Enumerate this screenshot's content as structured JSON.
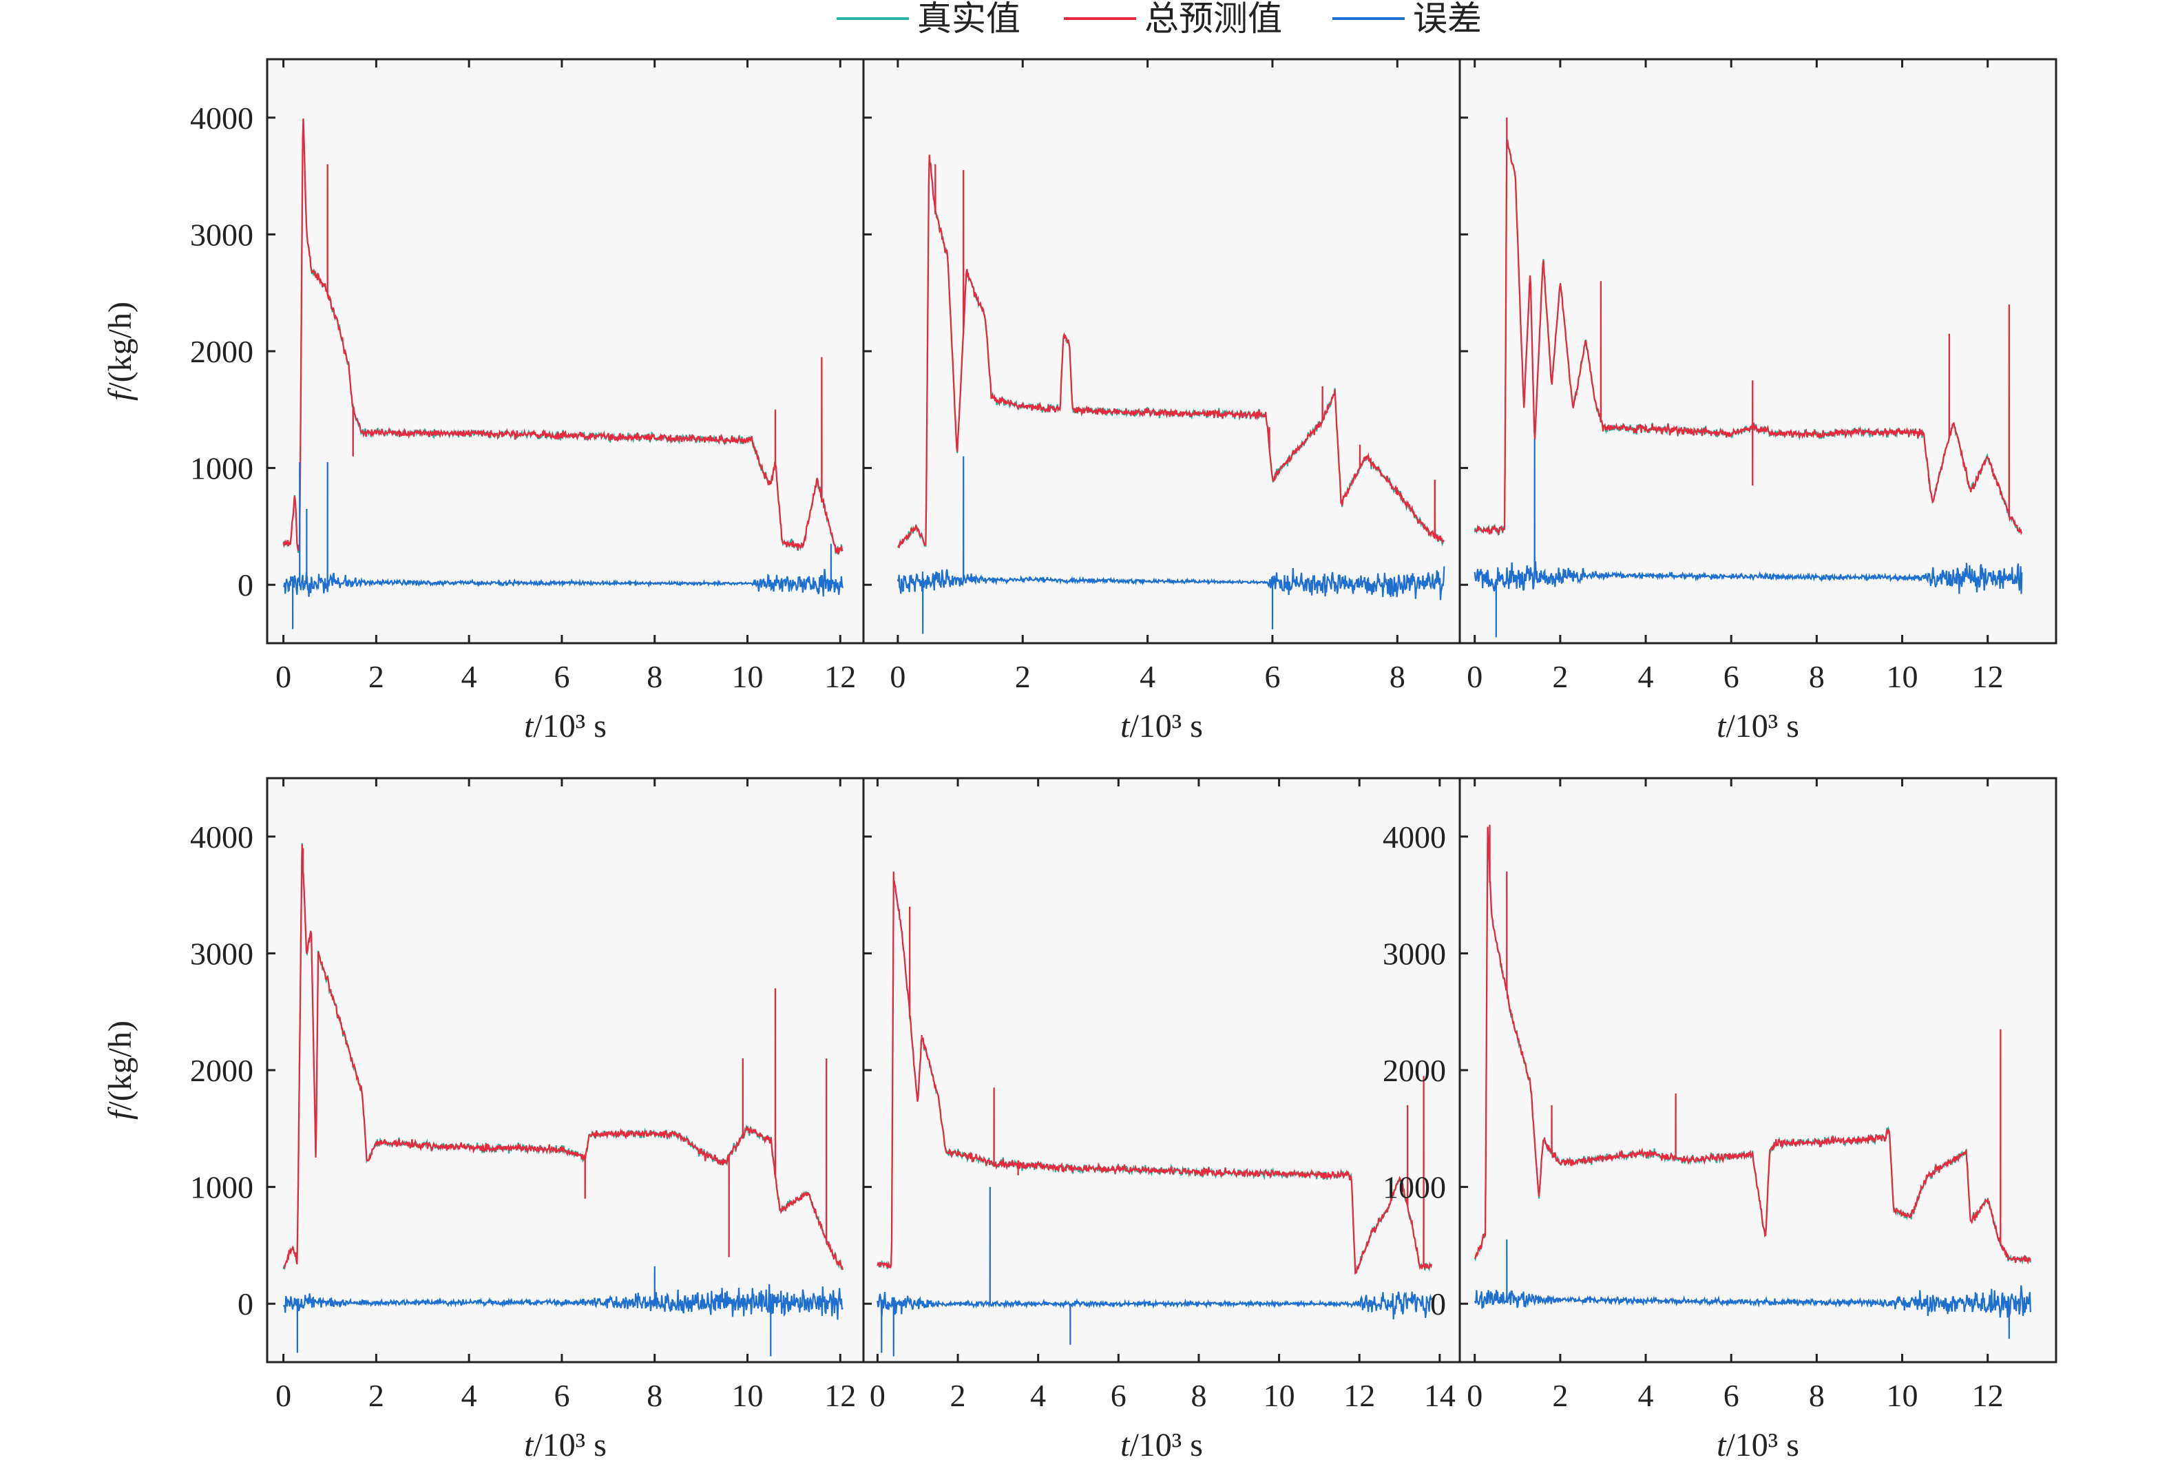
{
  "legend": [
    {
      "label": "真实值",
      "color": "#2ab4a0"
    },
    {
      "label": "总预测值",
      "color": "#e8283c"
    },
    {
      "label": "误差",
      "color": "#1f6fd0"
    }
  ],
  "y_axis_label": "f/(kg/h)",
  "x_axis_label": "t/10³ s",
  "chart_data": [
    {
      "type": "line",
      "panel": "top-left",
      "xlim": [
        -0.35,
        12.5
      ],
      "ylim": [
        -500,
        4500
      ],
      "xticks": [
        0,
        2,
        4,
        6,
        8,
        10,
        12
      ],
      "yticks": [
        0,
        1000,
        2000,
        3000,
        4000
      ],
      "ytick_labels": true,
      "prediction_profile": [
        [
          0,
          350
        ],
        [
          0.15,
          340
        ],
        [
          0.25,
          800
        ],
        [
          0.3,
          320
        ],
        [
          0.35,
          310
        ],
        [
          0.42,
          4100
        ],
        [
          0.5,
          3000
        ],
        [
          0.6,
          2700
        ],
        [
          0.9,
          2550
        ],
        [
          1.2,
          2200
        ],
        [
          1.35,
          1950
        ],
        [
          1.4,
          1900
        ],
        [
          1.5,
          1500
        ],
        [
          1.7,
          1300
        ],
        [
          3,
          1300
        ],
        [
          5,
          1290
        ],
        [
          7,
          1270
        ],
        [
          9,
          1250
        ],
        [
          10.1,
          1240
        ],
        [
          10.3,
          1000
        ],
        [
          10.5,
          850
        ],
        [
          10.6,
          1050
        ],
        [
          10.75,
          360
        ],
        [
          11.2,
          330
        ],
        [
          11.5,
          900
        ],
        [
          11.7,
          600
        ],
        [
          11.9,
          300
        ],
        [
          12.05,
          310
        ]
      ],
      "prediction_spikes": [
        [
          0.95,
          3600
        ],
        [
          1.5,
          1100
        ],
        [
          10.6,
          1500
        ],
        [
          11.6,
          1950
        ]
      ],
      "error_mean": [
        [
          0,
          0
        ],
        [
          0.4,
          20
        ],
        [
          12.05,
          10
        ]
      ],
      "error_noise": [
        [
          0,
          180
        ],
        [
          0.6,
          180
        ],
        [
          1.8,
          40
        ],
        [
          10.1,
          20
        ],
        [
          10.3,
          110
        ],
        [
          12.05,
          200
        ]
      ],
      "error_spikes": [
        [
          0.35,
          1050
        ],
        [
          0.95,
          1050
        ],
        [
          0.2,
          -380
        ],
        [
          0.5,
          650
        ],
        [
          11.8,
          350
        ]
      ]
    },
    {
      "type": "line",
      "panel": "top-middle",
      "xlim": [
        -0.55,
        9.0
      ],
      "ylim": [
        -500,
        4500
      ],
      "xticks": [
        0,
        2,
        4,
        6,
        8
      ],
      "yticks": [
        0,
        1000,
        2000,
        3000,
        4000
      ],
      "ytick_labels": false,
      "prediction_profile": [
        [
          0,
          330
        ],
        [
          0.3,
          500
        ],
        [
          0.45,
          330
        ],
        [
          0.5,
          3700
        ],
        [
          0.6,
          3200
        ],
        [
          0.8,
          2800
        ],
        [
          0.95,
          1100
        ],
        [
          1.1,
          2700
        ],
        [
          1.3,
          2400
        ],
        [
          1.4,
          2300
        ],
        [
          1.5,
          1600
        ],
        [
          2,
          1530
        ],
        [
          2.6,
          1500
        ],
        [
          2.65,
          2150
        ],
        [
          2.75,
          2050
        ],
        [
          2.8,
          1500
        ],
        [
          3.5,
          1480
        ],
        [
          4.5,
          1470
        ],
        [
          5.5,
          1460
        ],
        [
          5.9,
          1450
        ],
        [
          6,
          900
        ],
        [
          6.3,
          1100
        ],
        [
          6.8,
          1400
        ],
        [
          7,
          1650
        ],
        [
          7.1,
          700
        ],
        [
          7.5,
          1100
        ],
        [
          8,
          800
        ],
        [
          8.5,
          450
        ],
        [
          8.75,
          380
        ]
      ],
      "prediction_spikes": [
        [
          0.6,
          3600
        ],
        [
          1.05,
          3550
        ],
        [
          5.95,
          1350
        ],
        [
          6.8,
          1700
        ],
        [
          7.4,
          1200
        ],
        [
          8.6,
          900
        ]
      ],
      "error_mean": [
        [
          0,
          10
        ],
        [
          0.7,
          50
        ],
        [
          8.75,
          5
        ]
      ],
      "error_noise": [
        [
          0,
          220
        ],
        [
          0.8,
          160
        ],
        [
          1.5,
          40
        ],
        [
          5.9,
          20
        ],
        [
          6.1,
          180
        ],
        [
          8.75,
          200
        ]
      ],
      "error_spikes": [
        [
          1.05,
          1100
        ],
        [
          0.4,
          -420
        ],
        [
          6.0,
          -380
        ]
      ]
    },
    {
      "type": "line",
      "panel": "top-right",
      "xlim": [
        -0.35,
        13.6
      ],
      "ylim": [
        -500,
        4500
      ],
      "xticks": [
        0,
        2,
        4,
        6,
        8,
        10,
        12
      ],
      "yticks": [
        0,
        1000,
        2000,
        3000,
        4000
      ],
      "ytick_labels": false,
      "prediction_profile": [
        [
          0,
          470
        ],
        [
          0.7,
          470
        ],
        [
          0.75,
          3800
        ],
        [
          0.95,
          3500
        ],
        [
          1.15,
          1500
        ],
        [
          1.3,
          2700
        ],
        [
          1.4,
          1200
        ],
        [
          1.6,
          2800
        ],
        [
          1.8,
          1700
        ],
        [
          2,
          2600
        ],
        [
          2.3,
          1500
        ],
        [
          2.6,
          2100
        ],
        [
          2.8,
          1600
        ],
        [
          3,
          1350
        ],
        [
          5,
          1320
        ],
        [
          6,
          1290
        ],
        [
          6.5,
          1350
        ],
        [
          7,
          1300
        ],
        [
          8,
          1290
        ],
        [
          9,
          1310
        ],
        [
          10.5,
          1300
        ],
        [
          10.7,
          700
        ],
        [
          11.2,
          1400
        ],
        [
          11.6,
          800
        ],
        [
          12,
          1100
        ],
        [
          12.5,
          600
        ],
        [
          12.8,
          430
        ]
      ],
      "prediction_spikes": [
        [
          0.75,
          4000
        ],
        [
          2.95,
          2600
        ],
        [
          6.5,
          1750
        ],
        [
          6.5,
          850
        ],
        [
          11.1,
          2150
        ],
        [
          12.5,
          2400
        ]
      ],
      "error_mean": [
        [
          0,
          50
        ],
        [
          1,
          60
        ],
        [
          3,
          80
        ],
        [
          10.5,
          60
        ],
        [
          12.8,
          60
        ]
      ],
      "error_noise": [
        [
          0,
          250
        ],
        [
          1,
          220
        ],
        [
          3.2,
          40
        ],
        [
          10.5,
          40
        ],
        [
          10.8,
          180
        ],
        [
          12.8,
          220
        ]
      ],
      "error_spikes": [
        [
          1.4,
          1250
        ],
        [
          0.5,
          -450
        ]
      ]
    },
    {
      "type": "line",
      "panel": "bottom-left",
      "xlim": [
        -0.35,
        12.5
      ],
      "ylim": [
        -500,
        4500
      ],
      "xticks": [
        0,
        2,
        4,
        6,
        8,
        10,
        12
      ],
      "yticks": [
        0,
        1000,
        2000,
        3000,
        4000
      ],
      "ytick_labels": true,
      "prediction_profile": [
        [
          0,
          300
        ],
        [
          0.2,
          500
        ],
        [
          0.3,
          350
        ],
        [
          0.4,
          3950
        ],
        [
          0.5,
          3000
        ],
        [
          0.6,
          3200
        ],
        [
          0.7,
          1200
        ],
        [
          0.75,
          3000
        ],
        [
          1,
          2700
        ],
        [
          1.7,
          1800
        ],
        [
          1.8,
          1200
        ],
        [
          2,
          1380
        ],
        [
          4,
          1340
        ],
        [
          6,
          1320
        ],
        [
          6.5,
          1250
        ],
        [
          6.6,
          1450
        ],
        [
          7.5,
          1460
        ],
        [
          8.5,
          1450
        ],
        [
          9,
          1300
        ],
        [
          9.5,
          1200
        ],
        [
          10,
          1500
        ],
        [
          10.5,
          1400
        ],
        [
          10.7,
          800
        ],
        [
          11.3,
          950
        ],
        [
          11.8,
          450
        ],
        [
          12.05,
          300
        ]
      ],
      "prediction_spikes": [
        [
          0.42,
          3900
        ],
        [
          6.5,
          900
        ],
        [
          9.6,
          400
        ],
        [
          10.6,
          2700
        ],
        [
          11.7,
          2100
        ],
        [
          9.9,
          2100
        ]
      ],
      "error_mean": [
        [
          0,
          10
        ],
        [
          12.05,
          15
        ]
      ],
      "error_noise": [
        [
          0,
          220
        ],
        [
          0.5,
          130
        ],
        [
          1.5,
          40
        ],
        [
          6.3,
          40
        ],
        [
          7.5,
          130
        ],
        [
          9,
          200
        ],
        [
          12.05,
          220
        ]
      ],
      "error_spikes": [
        [
          0.3,
          -420
        ],
        [
          10.5,
          -450
        ],
        [
          8,
          320
        ]
      ]
    },
    {
      "type": "line",
      "panel": "bottom-middle",
      "xlim": [
        -0.35,
        14.5
      ],
      "ylim": [
        -500,
        4500
      ],
      "xticks": [
        0,
        2,
        4,
        6,
        8,
        10,
        12,
        14
      ],
      "yticks": [
        0,
        1000,
        2000,
        3000,
        4000
      ],
      "ytick_labels": false,
      "prediction_profile": [
        [
          0,
          350
        ],
        [
          0.35,
          330
        ],
        [
          0.4,
          3650
        ],
        [
          0.6,
          3200
        ],
        [
          0.8,
          2500
        ],
        [
          1,
          1700
        ],
        [
          1.1,
          2300
        ],
        [
          1.5,
          1800
        ],
        [
          1.7,
          1300
        ],
        [
          3,
          1200
        ],
        [
          5,
          1160
        ],
        [
          7,
          1140
        ],
        [
          9,
          1120
        ],
        [
          11,
          1110
        ],
        [
          11.8,
          1100
        ],
        [
          11.9,
          250
        ],
        [
          12.3,
          600
        ],
        [
          12.7,
          800
        ],
        [
          13,
          1100
        ],
        [
          13.3,
          700
        ],
        [
          13.5,
          320
        ],
        [
          13.8,
          330
        ]
      ],
      "prediction_spikes": [
        [
          0.4,
          3700
        ],
        [
          0.8,
          3400
        ],
        [
          1.1,
          2300
        ],
        [
          2.9,
          1850
        ],
        [
          3.5,
          1100
        ],
        [
          13.2,
          1700
        ],
        [
          13.6,
          1950
        ]
      ],
      "error_mean": [
        [
          0,
          0
        ],
        [
          13.8,
          0
        ]
      ],
      "error_noise": [
        [
          0,
          260
        ],
        [
          0.6,
          120
        ],
        [
          1.8,
          40
        ],
        [
          11.8,
          30
        ],
        [
          12,
          130
        ],
        [
          13.8,
          240
        ]
      ],
      "error_spikes": [
        [
          2.8,
          1000
        ],
        [
          0.1,
          -420
        ],
        [
          4.8,
          -350
        ],
        [
          0.4,
          -450
        ]
      ]
    },
    {
      "type": "line",
      "panel": "bottom-right",
      "xlim": [
        -0.35,
        13.6
      ],
      "ylim": [
        -500,
        4500
      ],
      "xticks": [
        0,
        2,
        4,
        6,
        8,
        10,
        12
      ],
      "yticks": [
        0,
        1000,
        2000,
        3000,
        4000
      ],
      "ytick_labels": true,
      "prediction_profile": [
        [
          0,
          370
        ],
        [
          0.25,
          600
        ],
        [
          0.3,
          4100
        ],
        [
          0.4,
          3300
        ],
        [
          0.9,
          2400
        ],
        [
          1.3,
          1900
        ],
        [
          1.5,
          900
        ],
        [
          1.6,
          1400
        ],
        [
          2,
          1200
        ],
        [
          4,
          1290
        ],
        [
          4.7,
          1250
        ],
        [
          5,
          1230
        ],
        [
          6.5,
          1280
        ],
        [
          6.8,
          550
        ],
        [
          6.9,
          1300
        ],
        [
          7,
          1380
        ],
        [
          8,
          1380
        ],
        [
          9.6,
          1420
        ],
        [
          9.7,
          1500
        ],
        [
          9.8,
          800
        ],
        [
          10.2,
          750
        ],
        [
          10.6,
          1100
        ],
        [
          11.5,
          1300
        ],
        [
          11.6,
          700
        ],
        [
          12,
          900
        ],
        [
          12.3,
          500
        ],
        [
          12.5,
          380
        ],
        [
          13,
          380
        ]
      ],
      "prediction_spikes": [
        [
          0.35,
          4100
        ],
        [
          0.75,
          3700
        ],
        [
          1.8,
          1700
        ],
        [
          4.7,
          1800
        ],
        [
          12.3,
          2350
        ]
      ],
      "error_mean": [
        [
          0,
          40
        ],
        [
          1,
          40
        ],
        [
          5,
          20
        ],
        [
          13,
          0
        ]
      ],
      "error_noise": [
        [
          0,
          200
        ],
        [
          1.3,
          140
        ],
        [
          2,
          40
        ],
        [
          9.6,
          50
        ],
        [
          9.8,
          130
        ],
        [
          13,
          220
        ]
      ],
      "error_spikes": [
        [
          0.75,
          550
        ],
        [
          12.5,
          -300
        ]
      ]
    }
  ]
}
